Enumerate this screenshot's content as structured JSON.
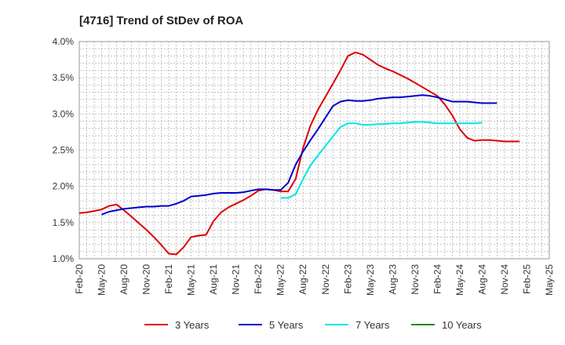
{
  "chart_data": {
    "type": "line",
    "title": "[4716]  Trend of StDev of ROA",
    "xlabel": "",
    "ylabel": "",
    "x_range": [
      "2020-02",
      "2025-05"
    ],
    "ylim": [
      1.0,
      4.0
    ],
    "y_ticks": [
      "4.0%",
      "3.5%",
      "3.0%",
      "2.5%",
      "2.0%",
      "1.5%",
      "1.0%"
    ],
    "y_tick_values": [
      4.0,
      3.5,
      3.0,
      2.5,
      2.0,
      1.5,
      1.0
    ],
    "x_ticks": [
      "Feb-20",
      "May-20",
      "Aug-20",
      "Nov-20",
      "Feb-21",
      "May-21",
      "Aug-21",
      "Nov-21",
      "Feb-22",
      "May-22",
      "Aug-22",
      "Nov-22",
      "Feb-23",
      "May-23",
      "Aug-23",
      "Nov-23",
      "Feb-24",
      "May-24",
      "Aug-24",
      "Nov-24",
      "Feb-25",
      "May-25"
    ],
    "grid": true,
    "legend_position": "bottom",
    "series": [
      {
        "name": "3 Years",
        "color": "#dd0000",
        "start": "2020-02",
        "values": [
          1.63,
          1.64,
          1.66,
          1.68,
          1.73,
          1.75,
          1.67,
          1.58,
          1.49,
          1.4,
          1.3,
          1.19,
          1.07,
          1.06,
          1.16,
          1.3,
          1.32,
          1.33,
          1.52,
          1.64,
          1.71,
          1.76,
          1.81,
          1.87,
          1.94,
          1.96,
          1.95,
          1.93,
          1.93,
          2.1,
          2.53,
          2.84,
          3.06,
          3.24,
          3.42,
          3.6,
          3.8,
          3.85,
          3.82,
          3.75,
          3.68,
          3.63,
          3.59,
          3.54,
          3.49,
          3.43,
          3.37,
          3.31,
          3.25,
          3.13,
          2.98,
          2.79,
          2.67,
          2.63,
          2.64,
          2.64,
          2.63,
          2.62,
          2.62,
          2.62
        ]
      },
      {
        "name": "5 Years",
        "color": "#0000cc",
        "start": "2020-05",
        "values": [
          1.61,
          1.65,
          1.67,
          1.69,
          1.7,
          1.71,
          1.72,
          1.72,
          1.73,
          1.73,
          1.76,
          1.8,
          1.86,
          1.87,
          1.88,
          1.9,
          1.91,
          1.91,
          1.91,
          1.92,
          1.94,
          1.96,
          1.96,
          1.95,
          1.95,
          2.05,
          2.3,
          2.48,
          2.64,
          2.79,
          2.95,
          3.11,
          3.17,
          3.19,
          3.18,
          3.18,
          3.19,
          3.21,
          3.22,
          3.23,
          3.23,
          3.24,
          3.25,
          3.26,
          3.25,
          3.23,
          3.2,
          3.17,
          3.17,
          3.17,
          3.16,
          3.15,
          3.15,
          3.15
        ]
      },
      {
        "name": "7 Years",
        "color": "#00e5e5",
        "start": "2022-05",
        "values": [
          1.84,
          1.84,
          1.89,
          2.1,
          2.29,
          2.43,
          2.56,
          2.69,
          2.82,
          2.87,
          2.87,
          2.85,
          2.85,
          2.86,
          2.86,
          2.87,
          2.87,
          2.88,
          2.89,
          2.89,
          2.88,
          2.87,
          2.87,
          2.87,
          2.87,
          2.87,
          2.87,
          2.88
        ]
      },
      {
        "name": "10 Years",
        "color": "#228b22",
        "start": "2025-02",
        "values": []
      }
    ]
  }
}
